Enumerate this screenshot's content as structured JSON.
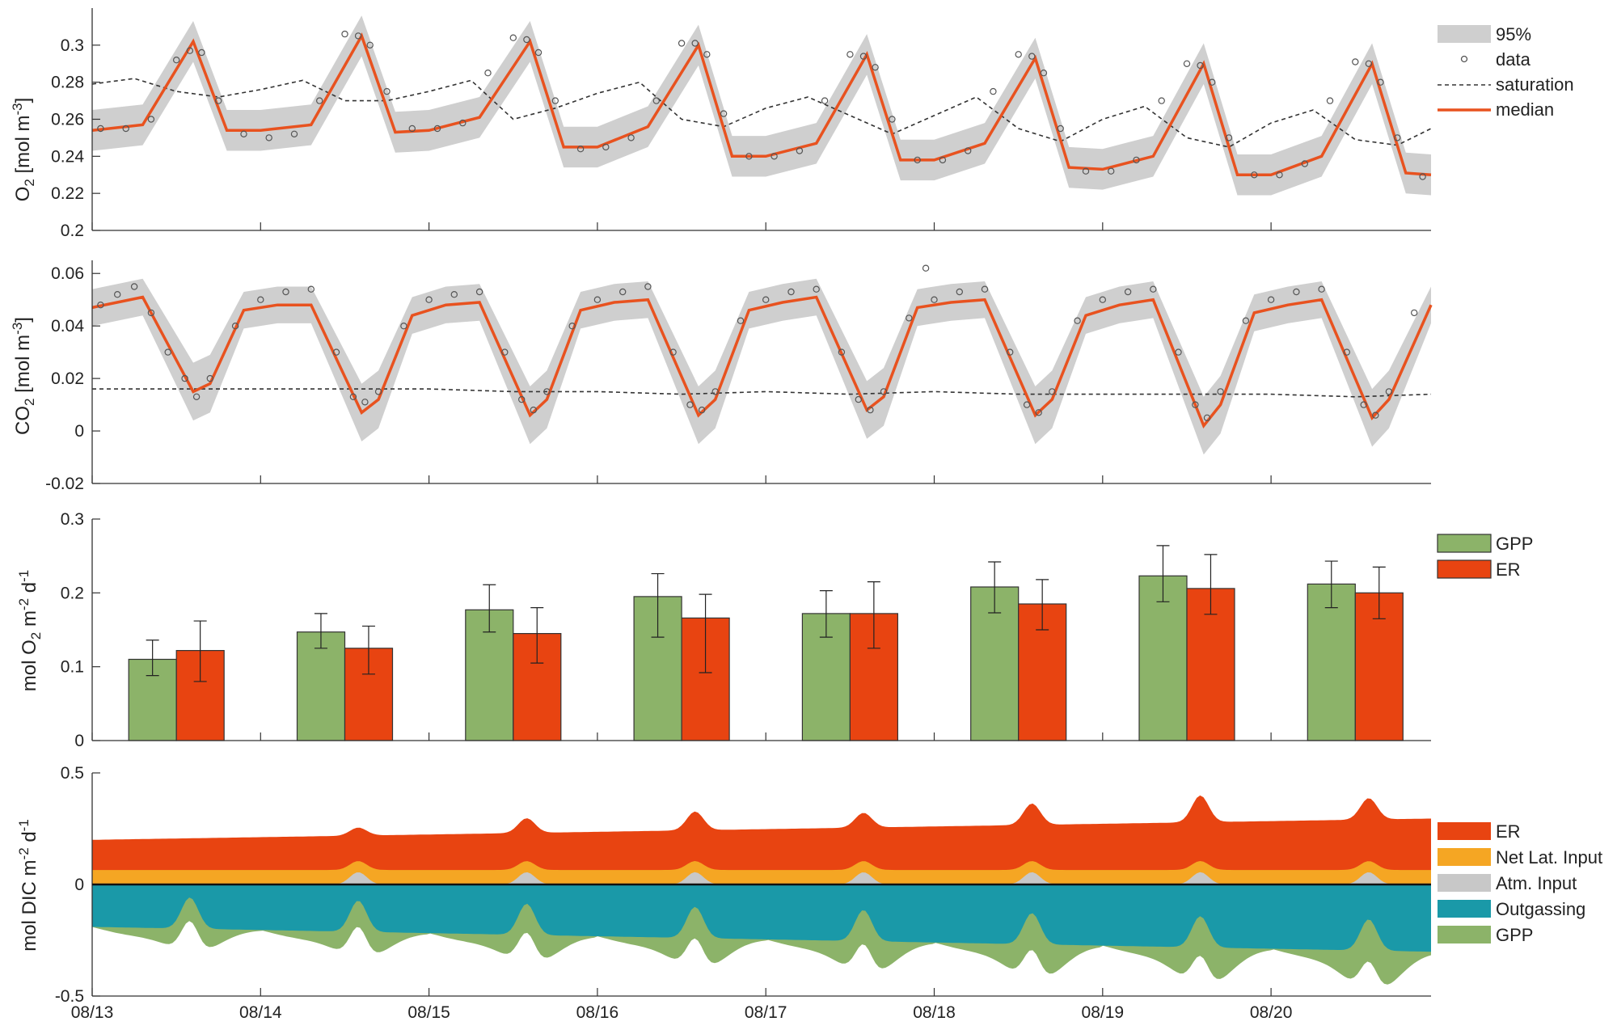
{
  "colors": {
    "median": "#e8521f",
    "band": "#cfcfcf",
    "data_marker": "#555555",
    "saturation": "#333333",
    "gpp_bar": "#8cb369",
    "er_bar": "#e84411",
    "area_er": "#e84411",
    "area_net_lat": "#f5a623",
    "area_atm": "#c8c8c8",
    "area_outgassing": "#1a99a8",
    "area_gpp": "#8cb369",
    "axis": "#333333"
  },
  "x_axis": {
    "tick_labels": [
      "08/13",
      "08/14",
      "08/15",
      "08/16",
      "08/17",
      "08/18",
      "08/19",
      "08/20"
    ],
    "range_days": [
      0,
      7.95
    ]
  },
  "chart_data": [
    {
      "type": "line",
      "panel": "O2",
      "ylabel_main": "O",
      "ylabel_sub": "2",
      "ylabel_unit": " [mol m",
      "ylabel_sup": "-3",
      "ylabel_end": "]",
      "ylim": [
        0.2,
        0.32
      ],
      "yticks": [
        "0.2",
        "0.22",
        "0.24",
        "0.26",
        "0.28",
        "0.3"
      ],
      "legend": [
        "95%",
        "data",
        "saturation",
        "median"
      ],
      "legend_position": "top-right, outside",
      "series": [
        {
          "name": "median",
          "x": [
            0,
            0.3,
            0.6,
            0.8,
            1.0,
            1.3,
            1.6,
            1.8,
            2.0,
            2.3,
            2.6,
            2.8,
            3.0,
            3.3,
            3.6,
            3.8,
            4.0,
            4.3,
            4.6,
            4.8,
            5.0,
            5.3,
            5.6,
            5.8,
            6.0,
            6.3,
            6.6,
            6.8,
            7.0,
            7.3,
            7.6,
            7.8,
            7.95
          ],
          "y": [
            0.254,
            0.257,
            0.302,
            0.254,
            0.254,
            0.257,
            0.305,
            0.253,
            0.254,
            0.261,
            0.302,
            0.245,
            0.245,
            0.256,
            0.3,
            0.24,
            0.24,
            0.247,
            0.295,
            0.238,
            0.238,
            0.247,
            0.293,
            0.234,
            0.233,
            0.24,
            0.29,
            0.23,
            0.23,
            0.24,
            0.29,
            0.231,
            0.23
          ]
        },
        {
          "name": "saturation",
          "x": [
            0,
            0.25,
            0.5,
            0.75,
            1.0,
            1.25,
            1.5,
            1.75,
            2.0,
            2.25,
            2.5,
            2.75,
            3.0,
            3.25,
            3.5,
            3.75,
            4.0,
            4.25,
            4.5,
            4.75,
            5.0,
            5.25,
            5.5,
            5.75,
            6.0,
            6.25,
            6.5,
            6.75,
            7.0,
            7.25,
            7.5,
            7.75,
            7.95
          ],
          "y": [
            0.279,
            0.282,
            0.275,
            0.272,
            0.276,
            0.281,
            0.27,
            0.27,
            0.275,
            0.281,
            0.26,
            0.266,
            0.274,
            0.28,
            0.26,
            0.256,
            0.266,
            0.272,
            0.262,
            0.252,
            0.262,
            0.272,
            0.255,
            0.248,
            0.26,
            0.267,
            0.25,
            0.245,
            0.258,
            0.265,
            0.249,
            0.246,
            0.255
          ]
        },
        {
          "name": "data",
          "x": [
            0.05,
            0.2,
            0.35,
            0.5,
            0.58,
            0.65,
            0.75,
            0.9,
            1.05,
            1.2,
            1.35,
            1.5,
            1.58,
            1.65,
            1.75,
            1.9,
            2.05,
            2.2,
            2.35,
            2.5,
            2.58,
            2.65,
            2.75,
            2.9,
            3.05,
            3.2,
            3.35,
            3.5,
            3.58,
            3.65,
            3.75,
            3.9,
            4.05,
            4.2,
            4.35,
            4.5,
            4.58,
            4.65,
            4.75,
            4.9,
            5.05,
            5.2,
            5.35,
            5.5,
            5.58,
            5.65,
            5.75,
            5.9,
            6.05,
            6.2,
            6.35,
            6.5,
            6.58,
            6.65,
            6.75,
            6.9,
            7.05,
            7.2,
            7.35,
            7.5,
            7.58,
            7.65,
            7.75,
            7.9
          ],
          "y": [
            0.255,
            0.255,
            0.26,
            0.292,
            0.297,
            0.296,
            0.27,
            0.252,
            0.25,
            0.252,
            0.27,
            0.306,
            0.305,
            0.3,
            0.275,
            0.255,
            0.255,
            0.258,
            0.285,
            0.304,
            0.303,
            0.296,
            0.27,
            0.244,
            0.245,
            0.25,
            0.27,
            0.301,
            0.301,
            0.295,
            0.263,
            0.24,
            0.24,
            0.243,
            0.27,
            0.295,
            0.294,
            0.288,
            0.26,
            0.238,
            0.238,
            0.243,
            0.275,
            0.295,
            0.294,
            0.285,
            0.255,
            0.232,
            0.232,
            0.238,
            0.27,
            0.29,
            0.289,
            0.28,
            0.25,
            0.23,
            0.23,
            0.236,
            0.27,
            0.291,
            0.29,
            0.28,
            0.25,
            0.229
          ]
        }
      ],
      "band_95": {
        "x": [
          0,
          0.3,
          0.6,
          0.8,
          1.0,
          1.3,
          1.6,
          1.8,
          2.0,
          2.3,
          2.6,
          2.8,
          3.0,
          3.3,
          3.6,
          3.8,
          4.0,
          4.3,
          4.6,
          4.8,
          5.0,
          5.3,
          5.6,
          5.8,
          6.0,
          6.3,
          6.6,
          6.8,
          7.0,
          7.3,
          7.6,
          7.8,
          7.95
        ],
        "lower": [
          0.243,
          0.246,
          0.291,
          0.243,
          0.243,
          0.246,
          0.294,
          0.242,
          0.243,
          0.25,
          0.291,
          0.234,
          0.234,
          0.245,
          0.289,
          0.229,
          0.229,
          0.236,
          0.284,
          0.227,
          0.227,
          0.236,
          0.282,
          0.223,
          0.222,
          0.229,
          0.279,
          0.219,
          0.219,
          0.229,
          0.279,
          0.22,
          0.219
        ],
        "upper": [
          0.265,
          0.268,
          0.313,
          0.265,
          0.265,
          0.268,
          0.316,
          0.264,
          0.265,
          0.272,
          0.313,
          0.256,
          0.256,
          0.267,
          0.311,
          0.251,
          0.251,
          0.258,
          0.306,
          0.249,
          0.249,
          0.258,
          0.304,
          0.245,
          0.244,
          0.251,
          0.301,
          0.241,
          0.241,
          0.251,
          0.301,
          0.242,
          0.241
        ]
      }
    },
    {
      "type": "line",
      "panel": "CO2",
      "ylabel_main": "CO",
      "ylabel_sub": "2",
      "ylabel_unit": " [mol m",
      "ylabel_sup": "-3",
      "ylabel_end": "]",
      "ylim": [
        -0.02,
        0.065
      ],
      "yticks": [
        "-0.02",
        "0",
        "0.02",
        "0.04",
        "0.06"
      ],
      "series": [
        {
          "name": "median",
          "x": [
            0,
            0.3,
            0.6,
            0.7,
            0.9,
            1.1,
            1.3,
            1.6,
            1.7,
            1.9,
            2.1,
            2.3,
            2.6,
            2.7,
            2.9,
            3.1,
            3.3,
            3.6,
            3.7,
            3.9,
            4.1,
            4.3,
            4.6,
            4.7,
            4.9,
            5.1,
            5.3,
            5.6,
            5.7,
            5.9,
            6.1,
            6.3,
            6.6,
            6.7,
            6.9,
            7.1,
            7.3,
            7.6,
            7.7,
            7.95
          ],
          "y": [
            0.047,
            0.051,
            0.015,
            0.018,
            0.046,
            0.048,
            0.048,
            0.007,
            0.012,
            0.044,
            0.048,
            0.049,
            0.006,
            0.012,
            0.046,
            0.049,
            0.05,
            0.006,
            0.012,
            0.046,
            0.049,
            0.051,
            0.008,
            0.013,
            0.047,
            0.049,
            0.05,
            0.006,
            0.012,
            0.044,
            0.048,
            0.05,
            0.002,
            0.01,
            0.045,
            0.048,
            0.05,
            0.005,
            0.012,
            0.048
          ]
        },
        {
          "name": "saturation",
          "x": [
            0,
            0.5,
            1.0,
            1.5,
            2.0,
            2.5,
            3.0,
            3.5,
            4.0,
            4.5,
            5.0,
            5.5,
            6.0,
            6.5,
            7.0,
            7.5,
            7.95
          ],
          "y": [
            0.016,
            0.016,
            0.016,
            0.016,
            0.016,
            0.015,
            0.015,
            0.014,
            0.015,
            0.014,
            0.015,
            0.014,
            0.014,
            0.014,
            0.014,
            0.013,
            0.014
          ]
        },
        {
          "name": "data",
          "x": [
            0.05,
            0.15,
            0.25,
            0.35,
            0.45,
            0.55,
            0.62,
            0.7,
            0.85,
            1.0,
            1.15,
            1.3,
            1.45,
            1.55,
            1.62,
            1.7,
            1.85,
            2.0,
            2.15,
            2.3,
            2.45,
            2.55,
            2.62,
            2.7,
            2.85,
            3.0,
            3.15,
            3.3,
            3.45,
            3.55,
            3.62,
            3.7,
            3.85,
            4.0,
            4.15,
            4.3,
            4.45,
            4.55,
            4.62,
            4.7,
            4.85,
            4.95,
            5.0,
            5.15,
            5.3,
            5.45,
            5.55,
            5.62,
            5.7,
            5.85,
            6.0,
            6.15,
            6.3,
            6.45,
            6.55,
            6.62,
            6.7,
            6.85,
            7.0,
            7.15,
            7.3,
            7.45,
            7.55,
            7.62,
            7.7,
            7.85
          ],
          "y": [
            0.048,
            0.052,
            0.055,
            0.045,
            0.03,
            0.02,
            0.013,
            0.02,
            0.04,
            0.05,
            0.053,
            0.054,
            0.03,
            0.013,
            0.011,
            0.015,
            0.04,
            0.05,
            0.052,
            0.053,
            0.03,
            0.012,
            0.008,
            0.015,
            0.04,
            0.05,
            0.053,
            0.055,
            0.03,
            0.01,
            0.008,
            0.015,
            0.042,
            0.05,
            0.053,
            0.054,
            0.03,
            0.012,
            0.008,
            0.015,
            0.043,
            0.062,
            0.05,
            0.053,
            0.054,
            0.03,
            0.01,
            0.007,
            0.015,
            0.042,
            0.05,
            0.053,
            0.054,
            0.03,
            0.01,
            0.005,
            0.015,
            0.042,
            0.05,
            0.053,
            0.054,
            0.03,
            0.01,
            0.006,
            0.015,
            0.045
          ]
        }
      ],
      "band_95": {
        "x": [
          0,
          0.3,
          0.6,
          0.7,
          0.9,
          1.1,
          1.3,
          1.6,
          1.7,
          1.9,
          2.1,
          2.3,
          2.6,
          2.7,
          2.9,
          3.1,
          3.3,
          3.6,
          3.7,
          3.9,
          4.1,
          4.3,
          4.6,
          4.7,
          4.9,
          5.1,
          5.3,
          5.6,
          5.7,
          5.9,
          6.1,
          6.3,
          6.6,
          6.7,
          6.9,
          7.1,
          7.3,
          7.6,
          7.7,
          7.95
        ],
        "lower": [
          0.04,
          0.044,
          0.004,
          0.007,
          0.039,
          0.041,
          0.041,
          -0.004,
          0.001,
          0.037,
          0.041,
          0.042,
          -0.005,
          0.001,
          0.039,
          0.042,
          0.043,
          -0.005,
          0.001,
          0.039,
          0.042,
          0.044,
          -0.003,
          0.002,
          0.04,
          0.042,
          0.043,
          -0.005,
          0.001,
          0.037,
          0.041,
          0.043,
          -0.009,
          -0.001,
          0.038,
          0.041,
          0.043,
          -0.006,
          0.001,
          0.041
        ],
        "upper": [
          0.054,
          0.058,
          0.026,
          0.029,
          0.053,
          0.055,
          0.055,
          0.018,
          0.023,
          0.051,
          0.055,
          0.056,
          0.017,
          0.023,
          0.053,
          0.056,
          0.057,
          0.017,
          0.023,
          0.053,
          0.056,
          0.058,
          0.019,
          0.024,
          0.054,
          0.056,
          0.057,
          0.017,
          0.023,
          0.051,
          0.055,
          0.057,
          0.013,
          0.021,
          0.052,
          0.055,
          0.057,
          0.016,
          0.023,
          0.055
        ]
      }
    },
    {
      "type": "bar",
      "panel": "metabolism",
      "ylabel_text": "mol O",
      "ylabel_sub": "2",
      "ylabel_mid": " m",
      "ylabel_sup1": "-2",
      "ylabel_mid2": " d",
      "ylabel_sup2": "-1",
      "ylim": [
        0,
        0.3
      ],
      "yticks": [
        "0",
        "0.1",
        "0.2",
        "0.3"
      ],
      "categories": [
        "08/13",
        "08/14",
        "08/15",
        "08/16",
        "08/17",
        "08/18",
        "08/19",
        "08/20"
      ],
      "legend": [
        "GPP",
        "ER"
      ],
      "series": [
        {
          "name": "GPP",
          "values": [
            0.11,
            0.147,
            0.177,
            0.195,
            0.172,
            0.208,
            0.223,
            0.212
          ],
          "err_low": [
            0.088,
            0.125,
            0.147,
            0.14,
            0.14,
            0.173,
            0.188,
            0.18
          ],
          "err_high": [
            0.136,
            0.172,
            0.211,
            0.226,
            0.203,
            0.242,
            0.264,
            0.243
          ]
        },
        {
          "name": "ER",
          "values": [
            0.122,
            0.125,
            0.145,
            0.166,
            0.172,
            0.185,
            0.206,
            0.2
          ],
          "err_low": [
            0.08,
            0.09,
            0.105,
            0.092,
            0.125,
            0.15,
            0.171,
            0.165
          ],
          "err_high": [
            0.162,
            0.155,
            0.18,
            0.198,
            0.215,
            0.218,
            0.252,
            0.235
          ]
        }
      ]
    },
    {
      "type": "area",
      "panel": "dic_fluxes",
      "ylabel_text": "mol DIC m",
      "ylabel_sup1": "-2",
      "ylabel_mid": " d",
      "ylabel_sup2": "-1",
      "ylim": [
        -0.5,
        0.5
      ],
      "yticks": [
        "-0.5",
        "0",
        "0.5"
      ],
      "legend": [
        "ER",
        "Net Lat. Input",
        "Atm. Input",
        "Outgassing",
        "GPP"
      ],
      "note_positive": "stacked above zero: Atm. Input, Net Lat. Input, ER (top)",
      "note_negative": "stacked below zero: Outgassing, GPP (bottom)"
    }
  ]
}
